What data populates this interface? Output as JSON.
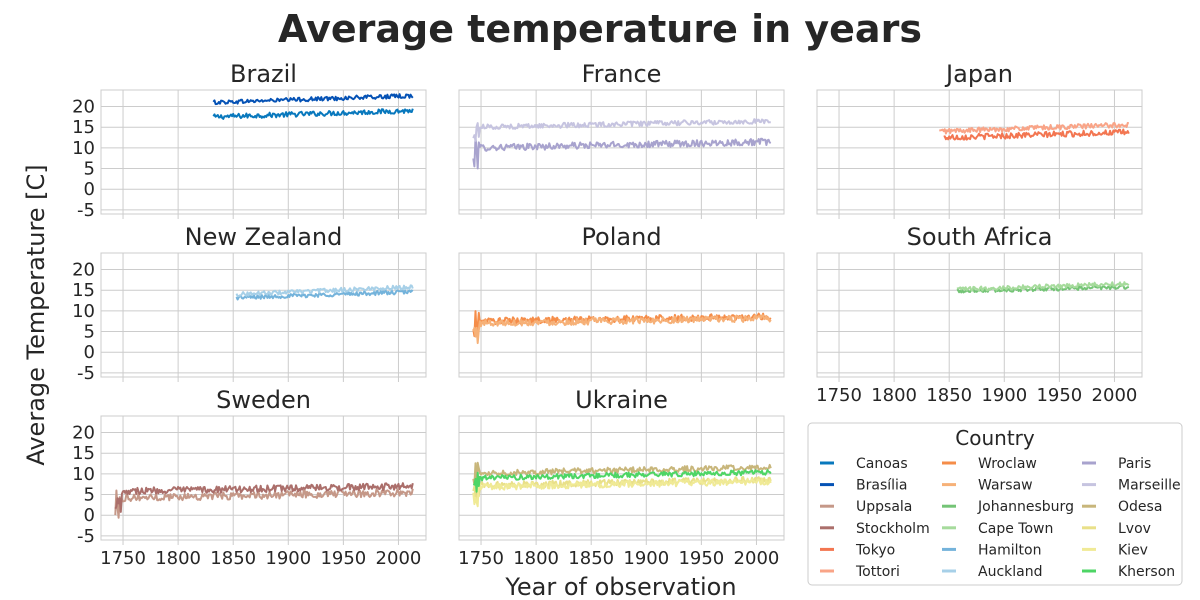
{
  "chart_data": {
    "type": "line",
    "title": "Average temperature in years",
    "xlabel": "Year of observation",
    "ylabel": "Average Temperature [C]",
    "xlim": [
      1730,
      2025
    ],
    "ylim": [
      -6,
      24
    ],
    "xticks": [
      1750,
      1800,
      1850,
      1900,
      1950,
      2000
    ],
    "yticks": [
      -5,
      0,
      5,
      10,
      15,
      20
    ],
    "grid": true,
    "legend": {
      "title": "Country",
      "placement": "bottom-right"
    },
    "panels": [
      {
        "title": "Brazil",
        "series": [
          {
            "name": "Canoas",
            "color": "#0878bd",
            "start": 1832,
            "end": 2013,
            "mean_start": 17.5,
            "mean_end": 19.0,
            "noise": 0.6
          },
          {
            "name": "Brasília",
            "color": "#0552b5",
            "start": 1832,
            "end": 2013,
            "mean_start": 21.0,
            "mean_end": 22.6,
            "noise": 0.5
          }
        ]
      },
      {
        "title": "France",
        "series": [
          {
            "name": "Paris",
            "color": "#a8a3ce",
            "start": 1743,
            "end": 2013,
            "mean_start": 10.0,
            "mean_end": 11.5,
            "noise": 0.8
          },
          {
            "name": "Marseille",
            "color": "#c6c4e0",
            "start": 1743,
            "end": 2013,
            "mean_start": 15.0,
            "mean_end": 16.5,
            "noise": 0.6
          }
        ]
      },
      {
        "title": "Japan",
        "series": [
          {
            "name": "Tokyo",
            "color": "#f37651",
            "start": 1845,
            "end": 2013,
            "mean_start": 12.5,
            "mean_end": 13.8,
            "noise": 0.7
          },
          {
            "name": "Tottori",
            "color": "#f9a487",
            "start": 1841,
            "end": 2013,
            "mean_start": 14.0,
            "mean_end": 15.6,
            "noise": 0.6
          }
        ]
      },
      {
        "title": "New Zealand",
        "series": [
          {
            "name": "Hamilton",
            "color": "#74b3db",
            "start": 1853,
            "end": 2013,
            "mean_start": 13.2,
            "mean_end": 14.6,
            "noise": 0.5
          },
          {
            "name": "Auckland",
            "color": "#a7d0e8",
            "start": 1853,
            "end": 2013,
            "mean_start": 14.0,
            "mean_end": 15.8,
            "noise": 0.5
          }
        ]
      },
      {
        "title": "Poland",
        "series": [
          {
            "name": "Wroclaw",
            "color": "#f58d49",
            "start": 1743,
            "end": 2013,
            "mean_start": 7.5,
            "mean_end": 8.6,
            "noise": 0.8
          },
          {
            "name": "Warsaw",
            "color": "#f6b178",
            "start": 1743,
            "end": 2013,
            "mean_start": 7.0,
            "mean_end": 8.2,
            "noise": 0.8
          }
        ]
      },
      {
        "title": "South Africa",
        "series": [
          {
            "name": "Johannesburg",
            "color": "#74c476",
            "start": 1857,
            "end": 2013,
            "mean_start": 14.8,
            "mean_end": 15.8,
            "noise": 0.5
          },
          {
            "name": "Cape Town",
            "color": "#a6db9c",
            "start": 1857,
            "end": 2013,
            "mean_start": 15.2,
            "mean_end": 16.6,
            "noise": 0.5
          }
        ]
      },
      {
        "title": "Sweden",
        "series": [
          {
            "name": "Uppsala",
            "color": "#c59888",
            "start": 1743,
            "end": 2013,
            "mean_start": 4.2,
            "mean_end": 5.5,
            "noise": 0.9
          },
          {
            "name": "Stockholm",
            "color": "#ab6f6b",
            "start": 1743,
            "end": 2013,
            "mean_start": 5.8,
            "mean_end": 7.0,
            "noise": 0.8
          }
        ]
      },
      {
        "title": "Ukraine",
        "series": [
          {
            "name": "Odesa",
            "color": "#c8b67b",
            "start": 1743,
            "end": 2013,
            "mean_start": 10.2,
            "mean_end": 11.6,
            "noise": 0.7
          },
          {
            "name": "Lvov",
            "color": "#e9e089",
            "start": 1743,
            "end": 2013,
            "mean_start": 7.2,
            "mean_end": 8.6,
            "noise": 0.8
          },
          {
            "name": "Kiev",
            "color": "#f0ea96",
            "start": 1743,
            "end": 2013,
            "mean_start": 6.8,
            "mean_end": 8.2,
            "noise": 0.8
          },
          {
            "name": "Kherson",
            "color": "#4ed565",
            "start": 1743,
            "end": 2013,
            "mean_start": 9.0,
            "mean_end": 10.4,
            "noise": 0.6
          }
        ]
      }
    ],
    "legend_entries": [
      {
        "name": "Canoas",
        "color": "#0878bd"
      },
      {
        "name": "Brasília",
        "color": "#0552b5"
      },
      {
        "name": "Uppsala",
        "color": "#c59888"
      },
      {
        "name": "Stockholm",
        "color": "#ab6f6b"
      },
      {
        "name": "Tokyo",
        "color": "#f37651"
      },
      {
        "name": "Tottori",
        "color": "#f9a487"
      },
      {
        "name": "Wroclaw",
        "color": "#f58d49"
      },
      {
        "name": "Warsaw",
        "color": "#f6b178"
      },
      {
        "name": "Johannesburg",
        "color": "#74c476"
      },
      {
        "name": "Cape Town",
        "color": "#a6db9c"
      },
      {
        "name": "Hamilton",
        "color": "#74b3db"
      },
      {
        "name": "Auckland",
        "color": "#a7d0e8"
      },
      {
        "name": "Paris",
        "color": "#a8a3ce"
      },
      {
        "name": "Marseille",
        "color": "#c6c4e0"
      },
      {
        "name": "Odesa",
        "color": "#c8b67b"
      },
      {
        "name": "Lvov",
        "color": "#e9e089"
      },
      {
        "name": "Kiev",
        "color": "#f0ea96"
      },
      {
        "name": "Kherson",
        "color": "#4ed565"
      }
    ]
  }
}
